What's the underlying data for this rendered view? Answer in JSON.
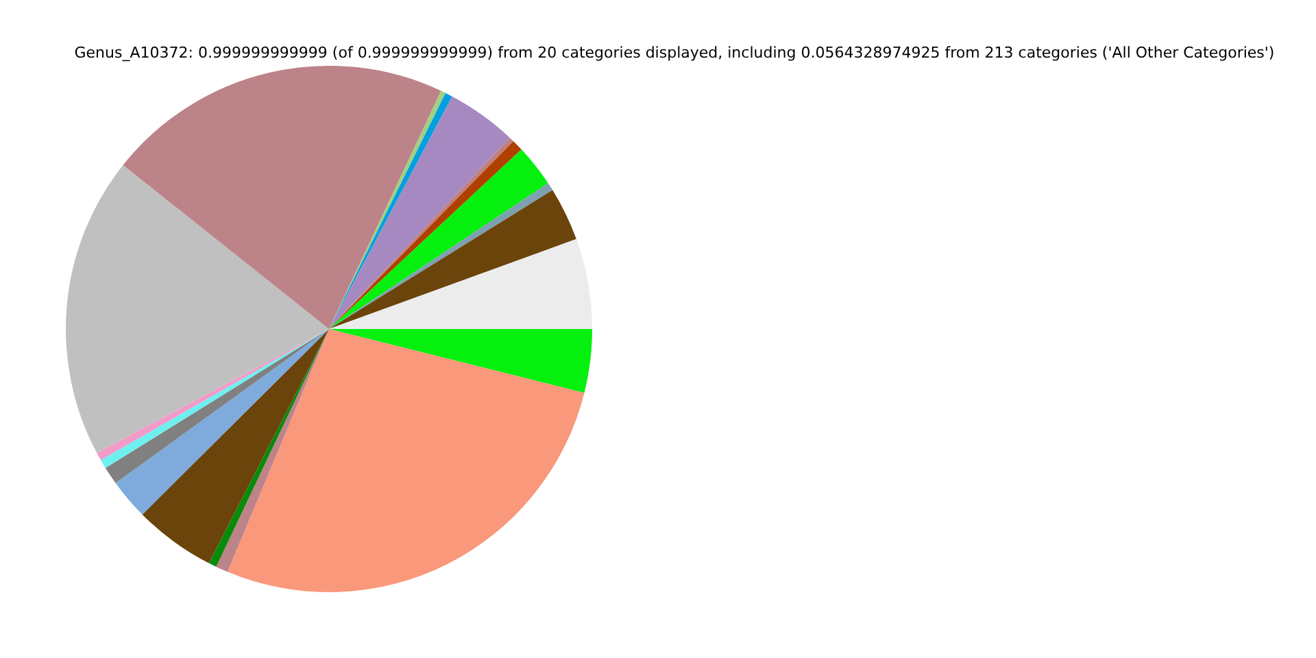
{
  "chart_data": {
    "type": "pie",
    "title": "Genus_A10372: 0.999999999999 (of 0.999999999999) from 20 categories displayed, including 0.0564328974925 from 213 categories ('All Other Categories')",
    "categories": [
      null,
      null,
      null,
      null,
      null,
      null,
      null,
      null,
      null,
      null,
      null,
      null,
      null,
      null,
      null,
      null,
      null,
      null,
      null,
      null
    ],
    "values": [
      3.9,
      27.4,
      0.75,
      0.5,
      5,
      2.5,
      1.1,
      0.55,
      0.5,
      18.5,
      21.3,
      0.3,
      0.45,
      4.3,
      0.3,
      0.7,
      2.6,
      0.5,
      3.3,
      5.55
    ],
    "colors": [
      "#05f00f",
      "#f9987a",
      "#bc8389",
      "#0a8a0a",
      "#6b440b",
      "#7eabdc",
      "#808080",
      "#6ef0f0",
      "#f29bc8",
      "#c0c0c0",
      "#bc8389",
      "#a0d080",
      "#00a0e0",
      "#a689c0",
      "#c08080",
      "#b04000",
      "#05f00f",
      "#7fa0b0",
      "#6b440b",
      "#ececec"
    ],
    "legend": false
  }
}
